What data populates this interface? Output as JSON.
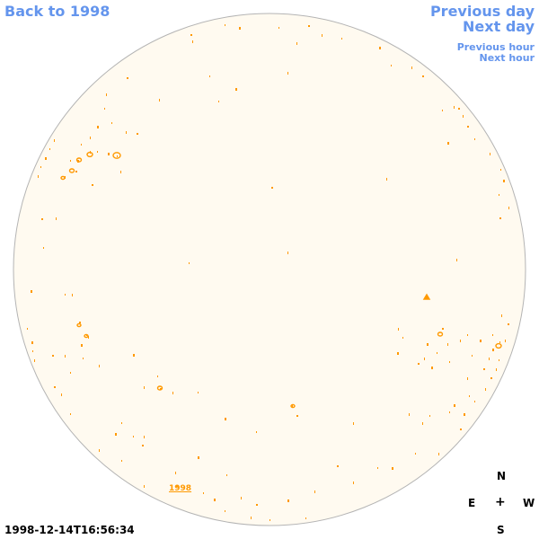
{
  "nav": {
    "back_label": "Back to 1998",
    "prev_day_label": "Previous day",
    "next_day_label": "Next day",
    "prev_hour_label": "Previous hour",
    "next_hour_label": "Next hour"
  },
  "compass": {
    "north": "N",
    "east": "E",
    "center": "+",
    "west": "W",
    "south": "S"
  },
  "timestamp": "1998-12-14T16:56:34",
  "year_label": "1998",
  "colors": {
    "link": "#6495ed",
    "disk_fill": "#fffaf0",
    "disk_border": "#b4b4b4",
    "feature": "#ff9900"
  }
}
